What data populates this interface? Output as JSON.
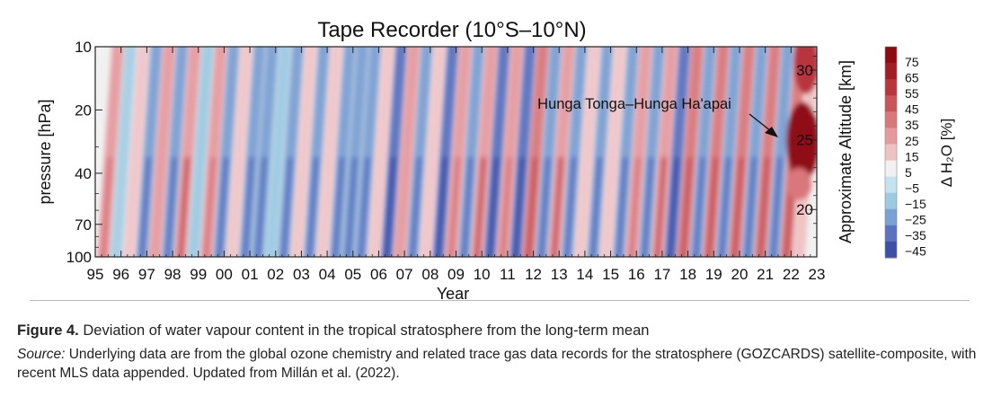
{
  "chart_data": {
    "type": "heatmap",
    "title": "Tape Recorder (10°S–10°N)",
    "xlabel": "Year",
    "ylabel": "pressure [hPa]",
    "ylabel_right": "Approximate Altitude [km]",
    "colorbar_label": "Δ H₂O [%]",
    "x_ticks": [
      "95",
      "96",
      "97",
      "98",
      "99",
      "00",
      "01",
      "02",
      "03",
      "04",
      "05",
      "06",
      "07",
      "08",
      "09",
      "10",
      "11",
      "12",
      "13",
      "14",
      "15",
      "16",
      "17",
      "18",
      "19",
      "20",
      "21",
      "22",
      "23"
    ],
    "x_range": [
      1995,
      2023
    ],
    "y_ticks": [
      10,
      20,
      40,
      70,
      100
    ],
    "y_range": [
      100,
      10
    ],
    "y_scale": "log",
    "y_right_ticks": [
      20,
      25,
      30
    ],
    "colorbar_ticks": [
      "75",
      "65",
      "55",
      "45",
      "35",
      "25",
      "15",
      "5",
      "−5",
      "−15",
      "−25",
      "−35",
      "−45"
    ],
    "colorbar_levels": [
      {
        "value": 75,
        "color": "#8f0b12"
      },
      {
        "value": 65,
        "color": "#a31d24"
      },
      {
        "value": 55,
        "color": "#b8353c"
      },
      {
        "value": 45,
        "color": "#c9545a"
      },
      {
        "value": 35,
        "color": "#d9777b"
      },
      {
        "value": 25,
        "color": "#e69a9e"
      },
      {
        "value": 15,
        "color": "#f0c1c3"
      },
      {
        "value": 5,
        "color": "#f1f1f1"
      },
      {
        "value": -5,
        "color": "#c4e3f0"
      },
      {
        "value": -15,
        "color": "#9ccae3"
      },
      {
        "value": -25,
        "color": "#7ba0d3"
      },
      {
        "value": -35,
        "color": "#5a72c0"
      },
      {
        "value": -45,
        "color": "#3e4fa8"
      }
    ],
    "annotation": {
      "text": "Hunga Tonga–Hunga Ha'apai",
      "year": 2022.1,
      "pressure_hPa": 30
    },
    "bands": [
      {
        "year": 1995.3,
        "delta": 22
      },
      {
        "year": 1995.8,
        "delta": -18
      },
      {
        "year": 1996.3,
        "delta": 18
      },
      {
        "year": 1996.8,
        "delta": -22
      },
      {
        "year": 1997.3,
        "delta": 20
      },
      {
        "year": 1997.8,
        "delta": -24
      },
      {
        "year": 1998.3,
        "delta": 26
      },
      {
        "year": 1998.8,
        "delta": -20
      },
      {
        "year": 1999.3,
        "delta": 24
      },
      {
        "year": 1999.8,
        "delta": -22
      },
      {
        "year": 2000.3,
        "delta": 18
      },
      {
        "year": 2000.8,
        "delta": -26
      },
      {
        "year": 2001.3,
        "delta": -28
      },
      {
        "year": 2001.8,
        "delta": -20
      },
      {
        "year": 2002.3,
        "delta": -24
      },
      {
        "year": 2002.8,
        "delta": 14
      },
      {
        "year": 2003.3,
        "delta": -26
      },
      {
        "year": 2003.8,
        "delta": 16
      },
      {
        "year": 2004.3,
        "delta": -22
      },
      {
        "year": 2004.8,
        "delta": -26
      },
      {
        "year": 2005.3,
        "delta": -28
      },
      {
        "year": 2005.8,
        "delta": 18
      },
      {
        "year": 2006.3,
        "delta": -32
      },
      {
        "year": 2006.8,
        "delta": 20
      },
      {
        "year": 2007.3,
        "delta": -30
      },
      {
        "year": 2007.8,
        "delta": 18
      },
      {
        "year": 2008.3,
        "delta": -34
      },
      {
        "year": 2008.8,
        "delta": 24
      },
      {
        "year": 2009.3,
        "delta": -30
      },
      {
        "year": 2009.8,
        "delta": 26
      },
      {
        "year": 2010.3,
        "delta": -32
      },
      {
        "year": 2010.8,
        "delta": 22
      },
      {
        "year": 2011.3,
        "delta": -34
      },
      {
        "year": 2011.8,
        "delta": 30
      },
      {
        "year": 2012.3,
        "delta": -30
      },
      {
        "year": 2012.8,
        "delta": 26
      },
      {
        "year": 2013.3,
        "delta": -28
      },
      {
        "year": 2013.8,
        "delta": 18
      },
      {
        "year": 2014.3,
        "delta": -24
      },
      {
        "year": 2014.8,
        "delta": 16
      },
      {
        "year": 2015.3,
        "delta": -26
      },
      {
        "year": 2015.8,
        "delta": 22
      },
      {
        "year": 2016.3,
        "delta": -30
      },
      {
        "year": 2016.8,
        "delta": 28
      },
      {
        "year": 2017.3,
        "delta": -32
      },
      {
        "year": 2017.8,
        "delta": 30
      },
      {
        "year": 2018.3,
        "delta": -28
      },
      {
        "year": 2018.8,
        "delta": 32
      },
      {
        "year": 2019.3,
        "delta": -30
      },
      {
        "year": 2019.8,
        "delta": 30
      },
      {
        "year": 2020.3,
        "delta": -26
      },
      {
        "year": 2020.8,
        "delta": 34
      },
      {
        "year": 2021.3,
        "delta": -24
      },
      {
        "year": 2021.8,
        "delta": 32
      },
      {
        "year": 2022.3,
        "delta": 75
      }
    ],
    "grid": false,
    "legend": "colorbar-right"
  },
  "caption": {
    "figure_label": "Figure 4.",
    "figure_text": " Deviation of water vapour content in the tropical stratosphere from the long-term mean",
    "source_label": "Source:",
    "source_text": " Underlying data are from the global ozone chemistry and related trace gas data records for the stratosphere (GOZCARDS) satellite-composite, with recent MLS data appended. Updated from Millán et al. (2022)."
  }
}
